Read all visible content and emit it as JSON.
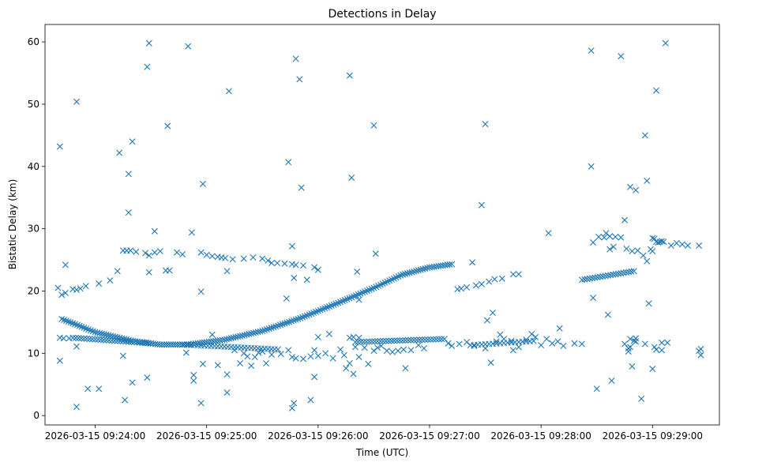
{
  "colors": {
    "marker": "#1f77b4",
    "axis": "#000000",
    "background": "#ffffff"
  },
  "chart_data": {
    "type": "scatter",
    "title": "Detections in Delay",
    "xlabel": "Time (UTC)",
    "ylabel": "Bistatic Delay (km)",
    "marker": "x",
    "x_unit": "seconds since 09:24:00",
    "xlim": [
      -27,
      336
    ],
    "ylim": [
      -1.5,
      62.8
    ],
    "x_ticks": [
      {
        "value": 0,
        "label": "2026-03-15 09:24:00"
      },
      {
        "value": 60,
        "label": "2026-03-15 09:25:00"
      },
      {
        "value": 120,
        "label": "2026-03-15 09:26:00"
      },
      {
        "value": 180,
        "label": "2026-03-15 09:27:00"
      },
      {
        "value": 240,
        "label": "2026-03-15 09:28:00"
      },
      {
        "value": 300,
        "label": "2026-03-15 09:29:00"
      }
    ],
    "y_ticks": [
      {
        "value": 0,
        "label": "0"
      },
      {
        "value": 10,
        "label": "10"
      },
      {
        "value": 20,
        "label": "20"
      },
      {
        "value": 30,
        "label": "30"
      },
      {
        "value": 40,
        "label": "40"
      },
      {
        "value": 50,
        "label": "50"
      },
      {
        "value": 60,
        "label": "60"
      }
    ],
    "tracks": [
      {
        "name": "falling-then-rising track",
        "x_start": -18,
        "x_end": 192,
        "step": 1.2,
        "knots": [
          [
            -18,
            15.5
          ],
          [
            -10,
            14.6
          ],
          [
            0,
            13.4
          ],
          [
            20,
            12.0
          ],
          [
            35,
            11.4
          ],
          [
            50,
            11.4
          ],
          [
            70,
            12.2
          ],
          [
            90,
            13.6
          ],
          [
            110,
            15.6
          ],
          [
            130,
            18.0
          ],
          [
            150,
            20.5
          ],
          [
            165,
            22.6
          ],
          [
            180,
            23.8
          ],
          [
            192,
            24.3
          ]
        ]
      },
      {
        "name": "lower band track A",
        "x_start": -12,
        "x_end": 30,
        "step": 1.5,
        "knots": [
          [
            -12,
            12.5
          ],
          [
            30,
            11.6
          ]
        ]
      },
      {
        "name": "lower band track B",
        "x_start": 48,
        "x_end": 100,
        "step": 1.8,
        "knots": [
          [
            48,
            11.4
          ],
          [
            100,
            10.6
          ]
        ]
      },
      {
        "name": "lower band track C",
        "x_start": 140,
        "x_end": 188,
        "step": 1.5,
        "knots": [
          [
            140,
            11.8
          ],
          [
            188,
            12.3
          ]
        ]
      },
      {
        "name": "late lower band track",
        "x_start": 202,
        "x_end": 237,
        "step": 2.0,
        "knots": [
          [
            202,
            11.3
          ],
          [
            237,
            12.0
          ]
        ]
      },
      {
        "name": "late rising track",
        "x_start": 262,
        "x_end": 290,
        "step": 1.4,
        "knots": [
          [
            262,
            21.8
          ],
          [
            290,
            23.2
          ]
        ]
      }
    ],
    "points": [
      [
        -20,
        20.5
      ],
      [
        -18,
        19.4
      ],
      [
        -16,
        19.7
      ],
      [
        -12,
        20.3
      ],
      [
        -10,
        20.2
      ],
      [
        -8,
        20.4
      ],
      [
        -5,
        20.8
      ],
      [
        2,
        21.2
      ],
      [
        8,
        21.7
      ],
      [
        12,
        23.2
      ],
      [
        -16,
        24.2
      ],
      [
        -19,
        43.2
      ],
      [
        -10,
        50.4
      ],
      [
        -19,
        8.8
      ],
      [
        -19,
        12.5
      ],
      [
        -10,
        1.4
      ],
      [
        -10,
        11.1
      ],
      [
        -4,
        4.3
      ],
      [
        2,
        4.3
      ],
      [
        -17,
        12.4
      ],
      [
        -14,
        12.4
      ],
      [
        15,
        26.5
      ],
      [
        17,
        26.5
      ],
      [
        19,
        26.5
      ],
      [
        22,
        26.3
      ],
      [
        27,
        26.1
      ],
      [
        29,
        25.7
      ],
      [
        32,
        26.2
      ],
      [
        35,
        26.4
      ],
      [
        40,
        23.3
      ],
      [
        44,
        26.2
      ],
      [
        47,
        25.9
      ],
      [
        52,
        29.4
      ],
      [
        13,
        42.2
      ],
      [
        18,
        32.6
      ],
      [
        18,
        38.8
      ],
      [
        20,
        44.0
      ],
      [
        28,
        56.0
      ],
      [
        29,
        59.8
      ],
      [
        32,
        29.6
      ],
      [
        39,
        46.5
      ],
      [
        50,
        59.3
      ],
      [
        15,
        9.6
      ],
      [
        16,
        2.5
      ],
      [
        20,
        5.3
      ],
      [
        28,
        6.1
      ],
      [
        29,
        23.0
      ],
      [
        38,
        23.3
      ],
      [
        57,
        26.2
      ],
      [
        60,
        25.8
      ],
      [
        63,
        25.6
      ],
      [
        66,
        25.5
      ],
      [
        68,
        25.4
      ],
      [
        70,
        25.3
      ],
      [
        74,
        25.1
      ],
      [
        80,
        25.2
      ],
      [
        85,
        25.4
      ],
      [
        90,
        25.2
      ],
      [
        93,
        24.9
      ],
      [
        58,
        37.2
      ],
      [
        72,
        52.1
      ],
      [
        57,
        19.9
      ],
      [
        57,
        2.0
      ],
      [
        53,
        6.5
      ],
      [
        53,
        5.6
      ],
      [
        71,
        23.2
      ],
      [
        71,
        3.7
      ],
      [
        71,
        6.6
      ],
      [
        47,
        11.4
      ],
      [
        49,
        10.1
      ],
      [
        58,
        8.3
      ],
      [
        63,
        13.0
      ],
      [
        66,
        8.1
      ],
      [
        95,
        24.5
      ],
      [
        98,
        24.5
      ],
      [
        102,
        24.4
      ],
      [
        106,
        24.3
      ],
      [
        108,
        24.2
      ],
      [
        112,
        24.1
      ],
      [
        114,
        21.8
      ],
      [
        118,
        23.8
      ],
      [
        120,
        23.4
      ],
      [
        104,
        40.7
      ],
      [
        106,
        27.2
      ],
      [
        108,
        57.3
      ],
      [
        110,
        54.0
      ],
      [
        111,
        36.6
      ],
      [
        103,
        18.8
      ],
      [
        107,
        22.1
      ],
      [
        106,
        1.2
      ],
      [
        107,
        2.0
      ],
      [
        116,
        2.5
      ],
      [
        118,
        6.2
      ],
      [
        75,
        10.5
      ],
      [
        78,
        8.4
      ],
      [
        80,
        10.0
      ],
      [
        82,
        9.5
      ],
      [
        84,
        8.0
      ],
      [
        86,
        9.4
      ],
      [
        88,
        10.1
      ],
      [
        90,
        10.3
      ],
      [
        92,
        8.4
      ],
      [
        95,
        9.8
      ],
      [
        100,
        9.9
      ],
      [
        104,
        10.5
      ],
      [
        106,
        9.4
      ],
      [
        108,
        9.2
      ],
      [
        112,
        9.1
      ],
      [
        116,
        9.5
      ],
      [
        118,
        10.5
      ],
      [
        120,
        9.6
      ],
      [
        124,
        10.0
      ],
      [
        128,
        9.2
      ],
      [
        132,
        10.6
      ],
      [
        134,
        9.7
      ],
      [
        137,
        8.4
      ],
      [
        140,
        11.0
      ],
      [
        142,
        9.4
      ],
      [
        120,
        12.6
      ],
      [
        126,
        13.1
      ],
      [
        135,
        7.6
      ],
      [
        137,
        54.6
      ],
      [
        138,
        38.2
      ],
      [
        139,
        6.7
      ],
      [
        141,
        23.1
      ],
      [
        142,
        18.6
      ],
      [
        137,
        12.5
      ],
      [
        139,
        12.6
      ],
      [
        142,
        12.5
      ],
      [
        145,
        10.9
      ],
      [
        147,
        8.3
      ],
      [
        150,
        10.4
      ],
      [
        152,
        10.9
      ],
      [
        154,
        11.2
      ],
      [
        157,
        10.4
      ],
      [
        160,
        10.2
      ],
      [
        163,
        10.4
      ],
      [
        166,
        10.6
      ],
      [
        170,
        10.5
      ],
      [
        174,
        11.3
      ],
      [
        177,
        10.8
      ],
      [
        150,
        46.6
      ],
      [
        151,
        26.0
      ],
      [
        167,
        7.6
      ],
      [
        195,
        20.3
      ],
      [
        197,
        20.4
      ],
      [
        200,
        20.6
      ],
      [
        205,
        20.9
      ],
      [
        208,
        21.1
      ],
      [
        212,
        21.5
      ],
      [
        215,
        21.9
      ],
      [
        219,
        22.0
      ],
      [
        225,
        22.7
      ],
      [
        228,
        22.7
      ],
      [
        203,
        24.6
      ],
      [
        208,
        33.8
      ],
      [
        210,
        46.8
      ],
      [
        211,
        15.3
      ],
      [
        214,
        16.5
      ],
      [
        213,
        8.5
      ],
      [
        224,
        12.0
      ],
      [
        218,
        13.0
      ],
      [
        190,
        11.6
      ],
      [
        192,
        11.2
      ],
      [
        196,
        11.5
      ],
      [
        200,
        11.8
      ],
      [
        204,
        11.2
      ],
      [
        210,
        10.8
      ],
      [
        216,
        11.9
      ],
      [
        220,
        12.3
      ],
      [
        225,
        10.5
      ],
      [
        228,
        11.0
      ],
      [
        232,
        12.2
      ],
      [
        235,
        13.1
      ],
      [
        237,
        12.6
      ],
      [
        240,
        11.3
      ],
      [
        243,
        12.3
      ],
      [
        246,
        11.6
      ],
      [
        249,
        11.9
      ],
      [
        252,
        11.2
      ],
      [
        258,
        11.6
      ],
      [
        262,
        11.5
      ],
      [
        244,
        29.3
      ],
      [
        250,
        14.0
      ],
      [
        275,
        29.3
      ],
      [
        276,
        16.2
      ],
      [
        288,
        11.0
      ],
      [
        290,
        12.0
      ],
      [
        296,
        11.5
      ],
      [
        301,
        11.0
      ],
      [
        305,
        11.7
      ],
      [
        267,
        58.6
      ],
      [
        267,
        40.0
      ],
      [
        268,
        18.9
      ],
      [
        270,
        4.3
      ],
      [
        268,
        27.8
      ],
      [
        271,
        28.7
      ],
      [
        274,
        28.6
      ],
      [
        277,
        28.8
      ],
      [
        280,
        28.7
      ],
      [
        283,
        28.6
      ],
      [
        277,
        26.7
      ],
      [
        279,
        27.1
      ],
      [
        286,
        26.8
      ],
      [
        289,
        26.4
      ],
      [
        292,
        26.5
      ],
      [
        295,
        25.7
      ],
      [
        297,
        24.8
      ],
      [
        299,
        26.7
      ],
      [
        300,
        28.5
      ],
      [
        285,
        31.4
      ],
      [
        283,
        57.7
      ],
      [
        288,
        36.7
      ],
      [
        291,
        36.2
      ],
      [
        296,
        45.0
      ],
      [
        297,
        37.7
      ],
      [
        298,
        18.0
      ],
      [
        300,
        26.4
      ],
      [
        301,
        28.4
      ],
      [
        302,
        27.9
      ],
      [
        303,
        27.8
      ],
      [
        304,
        27.9
      ],
      [
        305,
        28.0
      ],
      [
        306,
        27.9
      ],
      [
        310,
        27.3
      ],
      [
        313,
        27.7
      ],
      [
        316,
        27.5
      ],
      [
        319,
        27.3
      ],
      [
        325,
        27.3
      ],
      [
        302,
        52.2
      ],
      [
        307,
        59.8
      ],
      [
        278,
        5.6
      ],
      [
        285,
        11.5
      ],
      [
        287,
        10.3
      ],
      [
        291,
        12.4
      ],
      [
        294,
        2.7
      ],
      [
        300,
        7.5
      ],
      [
        302,
        10.6
      ],
      [
        305,
        10.5
      ],
      [
        308,
        11.7
      ],
      [
        288,
        12.3
      ],
      [
        291,
        11.9
      ],
      [
        287,
        10.8
      ],
      [
        289,
        7.9
      ],
      [
        325,
        10.4
      ],
      [
        326,
        9.7
      ],
      [
        326,
        10.7
      ]
    ]
  }
}
